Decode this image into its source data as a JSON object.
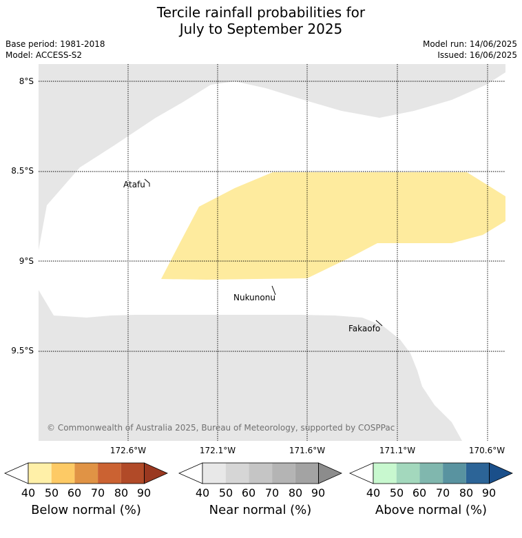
{
  "title_line1": "Tercile rainfall probabilities for",
  "title_line2": "July to September 2025",
  "base_period": "Base period: 1981-2018",
  "model": "Model: ACCESS-S2",
  "model_run": "Model run: 14/06/2025",
  "issued": "Issued: 16/06/2025",
  "lat_labels": [
    "8°S",
    "8.5°S",
    "9°S",
    "9.5°S"
  ],
  "lon_labels": [
    "172.6°W",
    "172.1°W",
    "171.6°W",
    "171.1°W",
    "170.6°W"
  ],
  "places": [
    "Atafu",
    "Nukunonu",
    "Fakaofo"
  ],
  "copyright": "© Commonwealth of Australia 2025, Bureau of Meteorology, supported by COSPPac",
  "colorbars": [
    {
      "title": "Below normal (%)",
      "ticks": [
        "40",
        "50",
        "60",
        "70",
        "80",
        "90"
      ],
      "colors": [
        "#ffffff",
        "#fff0a8",
        "#fdca65",
        "#e09345",
        "#cb6232",
        "#b14a28",
        "#9a3820"
      ]
    },
    {
      "title": "Near normal (%)",
      "ticks": [
        "40",
        "50",
        "60",
        "70",
        "80",
        "90"
      ],
      "colors": [
        "#ffffff",
        "#e8e8e8",
        "#d6d6d6",
        "#c5c5c5",
        "#b4b4b4",
        "#a3a3a3",
        "#8c8c8c"
      ]
    },
    {
      "title": "Above normal (%)",
      "ticks": [
        "40",
        "50",
        "60",
        "70",
        "80",
        "90"
      ],
      "colors": [
        "#ffffff",
        "#c8f8cf",
        "#a3d8bd",
        "#80b7ae",
        "#5993a0",
        "#2c6497",
        "#1a4f8a"
      ]
    }
  ],
  "region_colors": {
    "near_normal": "#e6e6e6",
    "below_normal_40_50": "#feeb9e"
  }
}
